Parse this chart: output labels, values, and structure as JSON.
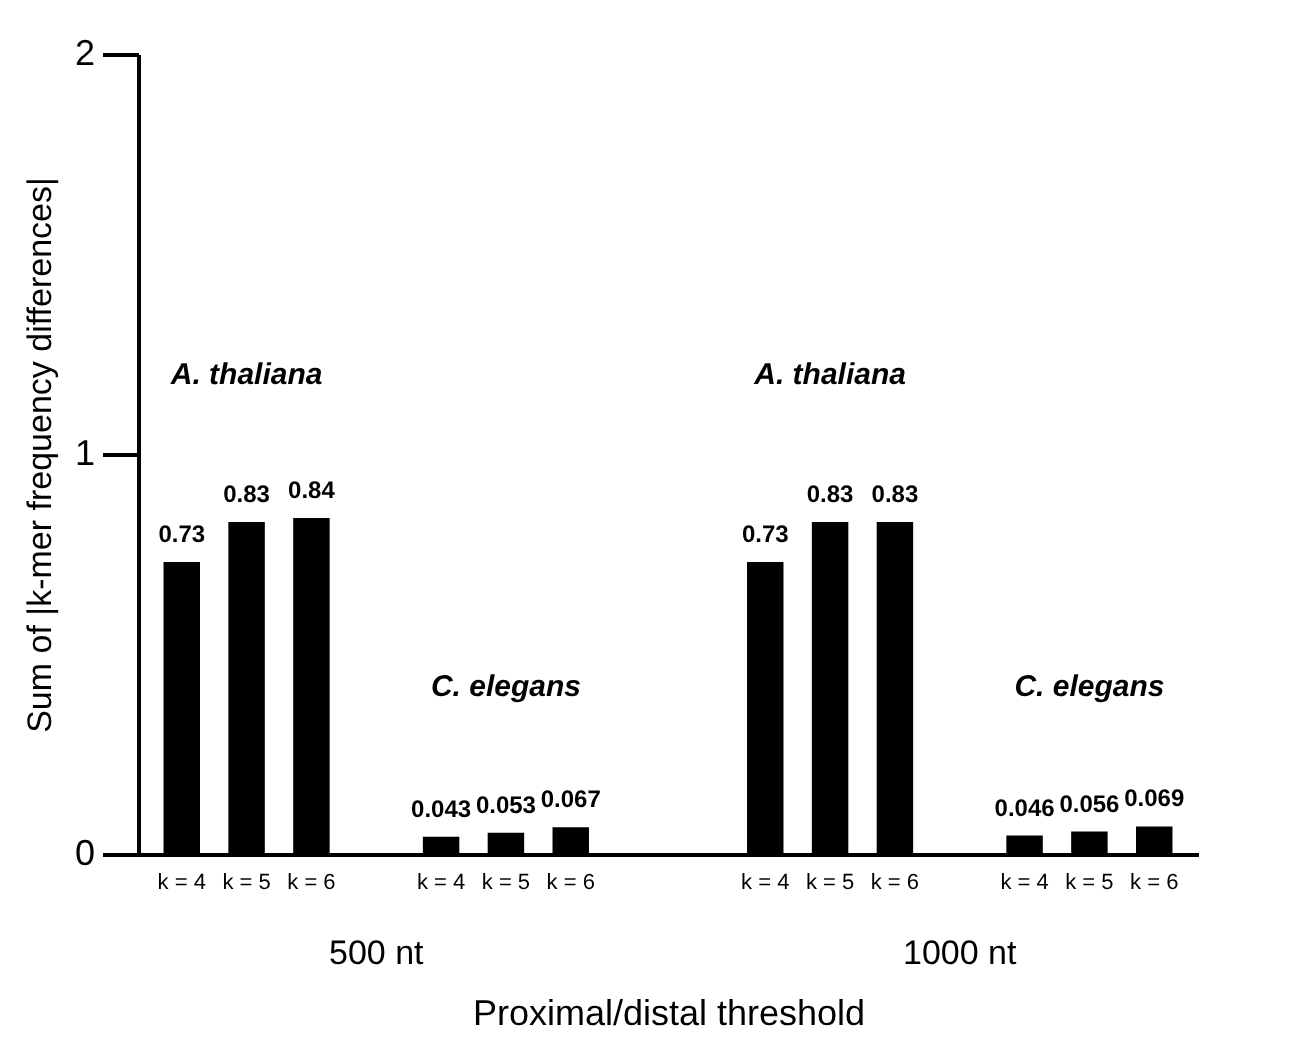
{
  "chart_data": {
    "type": "bar",
    "ylabel": "Sum of |k-mer frequency differences|",
    "xlabel": "Proximal/distal threshold",
    "categories": [
      "k = 4",
      "k = 5",
      "k = 6",
      "k = 4",
      "k = 5",
      "k = 6",
      "k = 4",
      "k = 5",
      "k = 6",
      "k = 4",
      "k = 5",
      "k = 6"
    ],
    "values": [
      0.73,
      0.83,
      0.84,
      0.043,
      0.053,
      0.067,
      0.73,
      0.83,
      0.83,
      0.046,
      0.056,
      0.069
    ],
    "color": "#000000",
    "ylim": [
      0,
      2
    ],
    "yticks": [
      0,
      1,
      2
    ],
    "grid": false,
    "data_labels": true,
    "annotations": [
      "A. thaliana",
      "C. elegans",
      "A. thaliana",
      "C. elegans",
      "500 nt",
      "1000 nt"
    ]
  }
}
